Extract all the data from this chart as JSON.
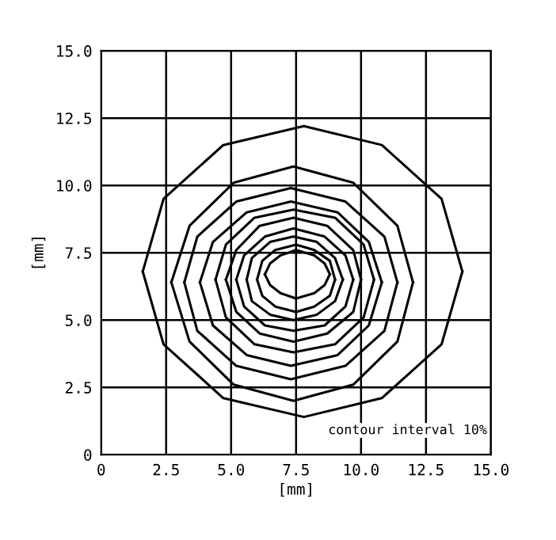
{
  "chart_data": {
    "type": "line",
    "xlabel": "[mm]",
    "ylabel": "[mm]",
    "annotations": [
      "contour interval 10%"
    ],
    "xlim": [
      0,
      15
    ],
    "ylim": [
      0,
      15
    ],
    "xticks": [
      0,
      {
        "value": 2.5,
        "label": "2.5"
      },
      {
        "value": 5,
        "label": "5.0"
      },
      {
        "value": 7.5,
        "label": "7.5"
      },
      {
        "value": 10,
        "label": "10.0"
      },
      {
        "value": 12.5,
        "label": "12.5"
      },
      {
        "value": 15,
        "label": "15.0"
      }
    ],
    "yticks": [
      0,
      {
        "value": 2.5,
        "label": "2.5"
      },
      {
        "value": 5,
        "label": "5.0"
      },
      {
        "value": 7.5,
        "label": "7.5"
      },
      {
        "value": 10,
        "label": "10.0"
      },
      {
        "value": 12.5,
        "label": "12.5"
      },
      {
        "value": 15,
        "label": "15.0"
      }
    ],
    "grid": true,
    "marker": "none",
    "line_style": "solid",
    "series": [
      {
        "color": "#000000",
        "x": [
          1.6,
          2.4,
          4.7,
          7.8,
          10.8,
          13.1,
          13.9
        ],
        "values": [
          6.8,
          9.5,
          11.5,
          12.2,
          11.5,
          9.5,
          6.8
        ]
      },
      {
        "color": "#000000",
        "x": [
          1.6,
          2.4,
          4.7,
          7.8,
          10.8,
          13.1,
          13.9
        ],
        "values": [
          6.8,
          4.1,
          2.1,
          1.4,
          2.1,
          4.1,
          6.8
        ]
      },
      {
        "color": "#000000",
        "x": [
          2.7,
          3.4,
          5.1,
          7.4,
          9.7,
          11.4,
          12.0
        ],
        "values": [
          6.4,
          8.5,
          10.1,
          10.7,
          10.1,
          8.5,
          6.4
        ]
      },
      {
        "color": "#000000",
        "x": [
          2.7,
          3.4,
          5.1,
          7.4,
          9.7,
          11.4,
          12.0
        ],
        "values": [
          6.4,
          4.2,
          2.6,
          2.0,
          2.6,
          4.2,
          6.4
        ]
      },
      {
        "color": "#000000",
        "x": [
          3.2,
          3.7,
          5.2,
          7.3,
          9.4,
          10.9,
          11.4
        ],
        "values": [
          6.4,
          8.1,
          9.4,
          9.9,
          9.4,
          8.1,
          6.4
        ]
      },
      {
        "color": "#000000",
        "x": [
          3.2,
          3.7,
          5.2,
          7.3,
          9.4,
          10.9,
          11.4
        ],
        "values": [
          6.4,
          4.6,
          3.3,
          2.8,
          3.3,
          4.6,
          6.4
        ]
      },
      {
        "color": "#000000",
        "x": [
          3.8,
          4.3,
          5.6,
          7.3,
          9.1,
          10.3,
          10.8
        ],
        "values": [
          6.4,
          7.9,
          9.0,
          9.4,
          9.0,
          7.9,
          6.4
        ]
      },
      {
        "color": "#000000",
        "x": [
          3.8,
          4.3,
          5.6,
          7.3,
          9.1,
          10.3,
          10.8
        ],
        "values": [
          6.4,
          4.8,
          3.7,
          3.3,
          3.7,
          4.8,
          6.4
        ]
      },
      {
        "color": "#000000",
        "x": [
          4.4,
          4.8,
          5.9,
          7.4,
          9.0,
          10.1,
          10.5
        ],
        "values": [
          6.5,
          7.8,
          8.8,
          9.1,
          8.8,
          7.8,
          6.5
        ]
      },
      {
        "color": "#000000",
        "x": [
          4.4,
          4.8,
          5.9,
          7.4,
          9.0,
          10.1,
          10.5
        ],
        "values": [
          6.5,
          5.1,
          4.1,
          3.8,
          4.1,
          5.1,
          6.5
        ]
      },
      {
        "color": "#000000",
        "x": [
          4.8,
          5.2,
          6.1,
          7.4,
          8.7,
          9.7,
          10.0
        ],
        "values": [
          6.5,
          7.6,
          8.5,
          8.8,
          8.5,
          7.6,
          6.5
        ]
      },
      {
        "color": "#000000",
        "x": [
          4.8,
          5.2,
          6.1,
          7.4,
          8.7,
          9.7,
          10.0
        ],
        "values": [
          6.5,
          5.3,
          4.5,
          4.2,
          4.5,
          5.3,
          6.5
        ]
      },
      {
        "color": "#000000",
        "x": [
          5.2,
          5.5,
          6.3,
          7.4,
          8.6,
          9.4,
          9.7
        ],
        "values": [
          6.5,
          7.4,
          8.1,
          8.4,
          8.1,
          7.4,
          6.5
        ]
      },
      {
        "color": "#000000",
        "x": [
          5.2,
          5.5,
          6.3,
          7.4,
          8.6,
          9.4,
          9.7
        ],
        "values": [
          6.5,
          5.5,
          4.8,
          4.6,
          4.8,
          5.5,
          6.5
        ]
      },
      {
        "color": "#000000",
        "x": [
          5.6,
          5.8,
          6.5,
          7.4,
          8.3,
          9.0,
          9.3
        ],
        "values": [
          6.5,
          7.3,
          7.9,
          8.1,
          7.9,
          7.3,
          6.5
        ]
      },
      {
        "color": "#000000",
        "x": [
          5.6,
          5.8,
          6.5,
          7.4,
          8.3,
          9.0,
          9.3
        ],
        "values": [
          6.5,
          5.7,
          5.2,
          5.0,
          5.2,
          5.7,
          6.5
        ]
      },
      {
        "color": "#000000",
        "x": [
          6.0,
          6.2,
          6.7,
          7.5,
          8.2,
          8.8,
          9.0
        ],
        "values": [
          6.5,
          7.2,
          7.6,
          7.8,
          7.6,
          7.2,
          6.5
        ]
      },
      {
        "color": "#000000",
        "x": [
          6.0,
          6.2,
          6.7,
          7.5,
          8.2,
          8.8,
          9.0
        ],
        "values": [
          6.5,
          5.9,
          5.5,
          5.3,
          5.5,
          5.9,
          6.5
        ]
      },
      {
        "color": "#000000",
        "x": [
          6.3,
          6.5,
          6.9,
          7.5,
          8.2,
          8.6,
          8.8
        ],
        "values": [
          6.7,
          7.1,
          7.4,
          7.6,
          7.4,
          7.1,
          6.7
        ]
      },
      {
        "color": "#000000",
        "x": [
          6.3,
          6.5,
          6.9,
          7.5,
          8.2,
          8.6,
          8.8
        ],
        "values": [
          6.7,
          6.3,
          6.0,
          5.8,
          6.0,
          6.3,
          6.7
        ]
      }
    ]
  }
}
